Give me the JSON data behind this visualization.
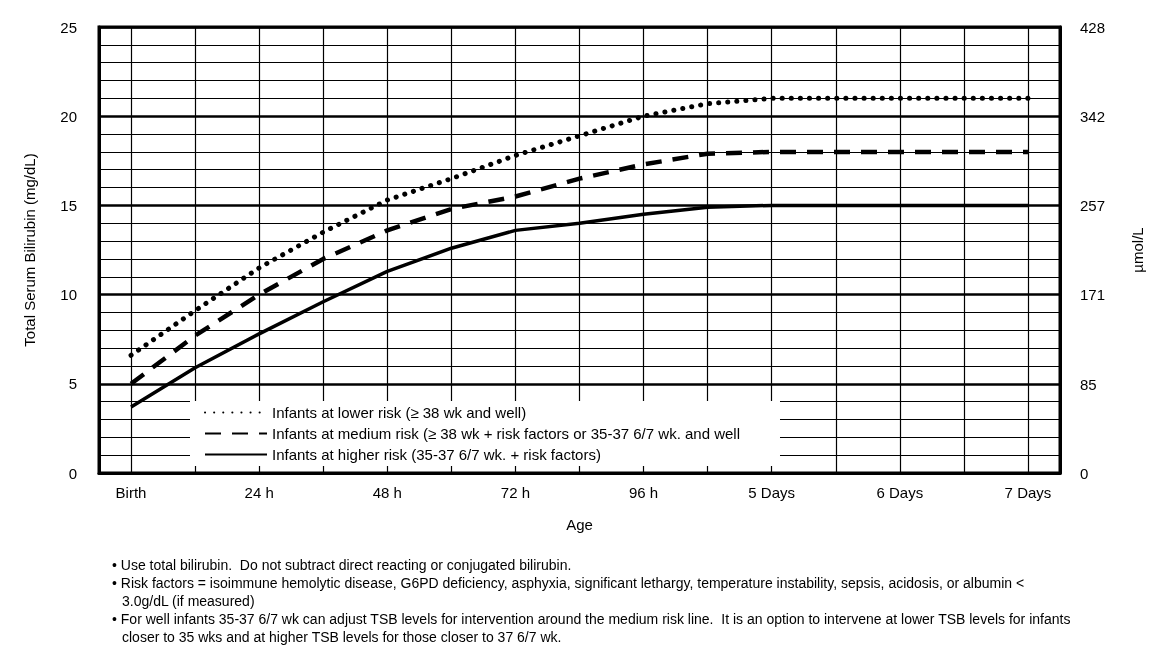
{
  "chart_data": {
    "type": "line",
    "xlabel": "Age",
    "ylabel": "Total Serum Bilirubin (mg/dL)",
    "y2label": "µmol/L",
    "categories": [
      "Birth",
      null,
      "24 h",
      null,
      "48 h",
      null,
      "72 h",
      null,
      "96 h",
      null,
      "5 Days",
      null,
      "6 Days",
      null,
      "7 Days"
    ],
    "ylim": [
      0,
      25
    ],
    "yticks": [
      0,
      5,
      10,
      15,
      20,
      25
    ],
    "y2lim": [
      0,
      428
    ],
    "y2ticks": [
      0,
      85,
      171,
      257,
      342,
      428
    ],
    "grid": true,
    "legend": "bottom",
    "marker": "none",
    "series": [
      {
        "name": "Infants at lower risk (≥ 38 wk and well)",
        "color": "#000000",
        "line_style": "dotted",
        "values": [
          6.6,
          9.1,
          11.5,
          13.5,
          15.3,
          16.5,
          17.8,
          18.9,
          20.0,
          20.7,
          21,
          21,
          21,
          21,
          21
        ]
      },
      {
        "name": "Infants at medium risk (≥ 38 wk + risk factors or 35-37 6/7 wk. and well",
        "color": "#000000",
        "line_style": "dashed",
        "values": [
          5.0,
          7.7,
          10.0,
          12.0,
          13.6,
          14.8,
          15.5,
          16.5,
          17.3,
          17.9,
          18,
          18,
          18,
          18,
          18
        ]
      },
      {
        "name": "Infants at higher risk (35-37 6/7 wk. + risk factors)",
        "color": "#000000",
        "line_style": "solid",
        "values": [
          3.7,
          5.9,
          7.8,
          9.6,
          11.3,
          12.6,
          13.6,
          14.0,
          14.5,
          14.9,
          15,
          15,
          15,
          15,
          15
        ]
      }
    ],
    "annotations": [
      "• Use total bilirubin.  Do not subtract direct reacting or conjugated bilirubin.",
      "• Risk factors = isoimmune hemolytic disease, G6PD deficiency, asphyxia, significant lethargy, temperature instability, sepsis, acidosis, or albumin < 3.0g/dL (if measured)",
      "• For well infants 35-37 6/7 wk can adjust TSB levels for intervention around the medium risk line.  It is an option to intervene at lower TSB levels for infants closer to 35 wks and at higher TSB levels for those closer to 37 6/7 wk."
    ]
  }
}
